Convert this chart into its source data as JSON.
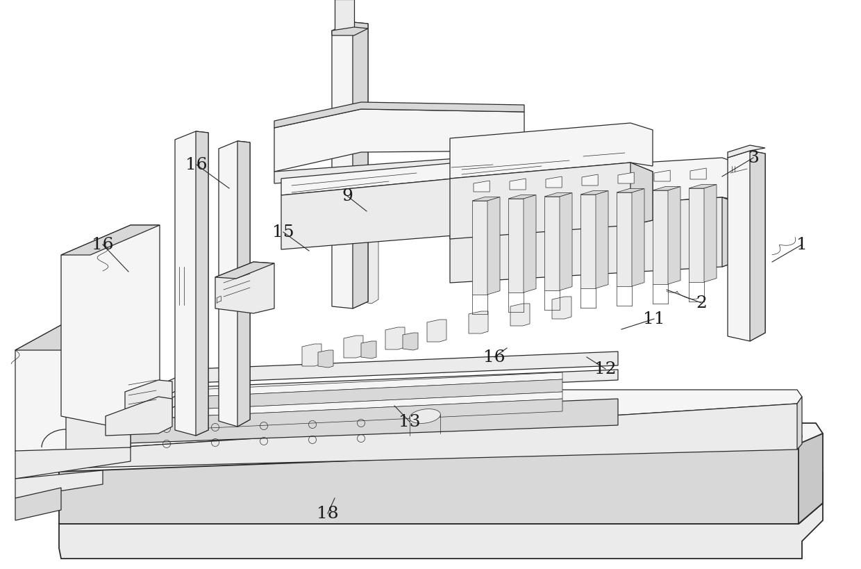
{
  "background_color": "#ffffff",
  "line_color": "#2a2a2a",
  "line_color_thin": "#3a3a3a",
  "text_color": "#1a1a1a",
  "font_size": 18,
  "font_family": "serif",
  "fill_white": "#ffffff",
  "fill_light": "#f5f5f5",
  "fill_mid": "#ebebeb",
  "fill_dark": "#d8d8d8",
  "fill_darker": "#c8c8c8",
  "annotations": [
    [
      "1",
      1155,
      353,
      1112,
      378
    ],
    [
      "2",
      1010,
      437,
      960,
      418
    ],
    [
      "3",
      1085,
      228,
      1040,
      255
    ],
    [
      "9",
      500,
      283,
      528,
      305
    ],
    [
      "11",
      942,
      460,
      895,
      475
    ],
    [
      "12",
      872,
      532,
      845,
      515
    ],
    [
      "13",
      590,
      608,
      568,
      585
    ],
    [
      "15",
      408,
      335,
      445,
      362
    ],
    [
      "16",
      283,
      238,
      330,
      272
    ],
    [
      "16",
      148,
      353,
      185,
      392
    ],
    [
      "16",
      712,
      515,
      730,
      502
    ],
    [
      "18",
      472,
      740,
      482,
      718
    ]
  ]
}
